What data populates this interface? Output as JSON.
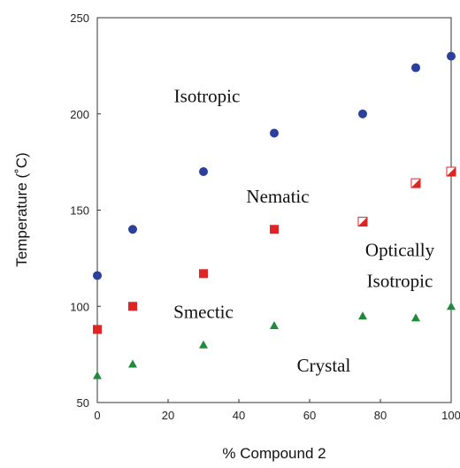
{
  "chart_data": {
    "type": "scatter",
    "xlabel": "% Compound 2",
    "ylabel": "Temperature (˚C)",
    "xlim": [
      0,
      100
    ],
    "ylim": [
      50,
      250
    ],
    "xticks": [
      0,
      20,
      40,
      60,
      80,
      100
    ],
    "yticks": [
      50,
      100,
      150,
      200,
      250
    ],
    "grid": false,
    "series": [
      {
        "marker": "circle",
        "color": "#2b3f9c",
        "points": [
          [
            0,
            116
          ],
          [
            10,
            140
          ],
          [
            30,
            170
          ],
          [
            50,
            190
          ],
          [
            75,
            200
          ],
          [
            90,
            224
          ],
          [
            100,
            230
          ]
        ]
      },
      {
        "marker": "square",
        "color": "#e02424",
        "points": [
          [
            0,
            88
          ],
          [
            10,
            100
          ],
          [
            30,
            117
          ],
          [
            50,
            140
          ]
        ]
      },
      {
        "marker": "half-square",
        "color": "#e02424",
        "points": [
          [
            75,
            144
          ],
          [
            90,
            164
          ],
          [
            100,
            170
          ]
        ]
      },
      {
        "marker": "triangle",
        "color": "#1f8a3c",
        "points": [
          [
            0,
            64
          ],
          [
            10,
            70
          ],
          [
            30,
            80
          ],
          [
            50,
            90
          ],
          [
            75,
            95
          ],
          [
            90,
            94
          ],
          [
            100,
            100
          ]
        ]
      }
    ],
    "annotations": [
      {
        "text": "Isotropic",
        "x": 31,
        "y": 206
      },
      {
        "text": "Nematic",
        "x": 51,
        "y": 154
      },
      {
        "text": "Optically",
        "x": 85.5,
        "y": 126
      },
      {
        "text": "Isotropic",
        "x": 85.5,
        "y": 110
      },
      {
        "text": "Smectic",
        "x": 30,
        "y": 94
      },
      {
        "text": "Crystal",
        "x": 64,
        "y": 66
      }
    ]
  }
}
